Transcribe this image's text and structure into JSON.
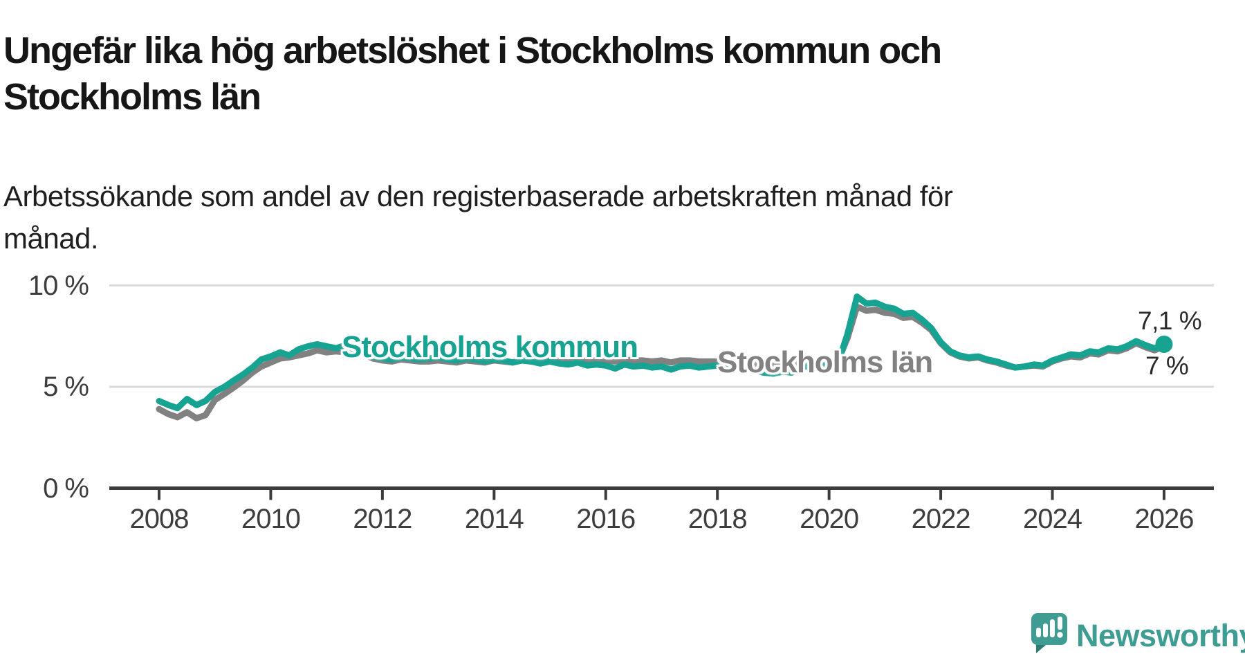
{
  "header": {
    "title": "Ungefär lika hög arbetslöshet i Stockholms kommun och Stockholms län",
    "subtitle": "Arbetssökande som andel av den registerbaserade arbetskraften månad för månad."
  },
  "footer": {
    "brand": "Newsworthy"
  },
  "colors": {
    "kommun_teal": "#17a392",
    "lan_gray": "#818181",
    "grid": "#dadada",
    "axis": "#3c3c3c",
    "tick_text": "#3d3d3d",
    "title_text": "#161616",
    "logo_teal": "#3e9c92",
    "logo_teal_dark": "#2d7b72"
  },
  "chart_data": {
    "type": "line",
    "title": "Ungefär lika hög arbetslöshet i Stockholms kommun och Stockholms län",
    "subtitle": "Arbetssökande som andel av den registerbaserade arbetskraften månad för månad.",
    "xlabel": "",
    "ylabel": "",
    "unit": "%",
    "grid": true,
    "legend_position": "inline-labels",
    "xlim": [
      2007.1,
      2026.9
    ],
    "ylim": [
      0,
      10.5
    ],
    "x_axis": {
      "tick_years": [
        2008,
        2010,
        2012,
        2014,
        2016,
        2018,
        2020,
        2022,
        2024,
        2026
      ]
    },
    "y_axis": {
      "ticks": [
        {
          "value": 10,
          "label": "10 %"
        },
        {
          "value": 5,
          "label": "5 %"
        },
        {
          "value": 0,
          "label": "0 %"
        }
      ],
      "gridline_values": [
        10,
        5
      ]
    },
    "x": [
      2008,
      2008.17,
      2008.33,
      2008.5,
      2008.67,
      2008.83,
      2009,
      2009.17,
      2009.33,
      2009.5,
      2009.67,
      2009.83,
      2010,
      2010.17,
      2010.33,
      2010.5,
      2010.67,
      2010.83,
      2011,
      2011.17,
      2011.33,
      2011.5,
      2011.67,
      2011.83,
      2012,
      2012.17,
      2012.33,
      2012.5,
      2012.67,
      2012.83,
      2013,
      2013.17,
      2013.33,
      2013.5,
      2013.67,
      2013.83,
      2014,
      2014.17,
      2014.33,
      2014.5,
      2014.67,
      2014.83,
      2015,
      2015.17,
      2015.33,
      2015.5,
      2015.67,
      2015.83,
      2016,
      2016.17,
      2016.33,
      2016.5,
      2016.67,
      2016.83,
      2017,
      2017.17,
      2017.33,
      2017.5,
      2017.67,
      2017.83,
      2018,
      2018.17,
      2018.33,
      2018.5,
      2018.67,
      2018.83,
      2019,
      2019.17,
      2019.33,
      2019.5,
      2019.67,
      2019.83,
      2020,
      2020.17,
      2020.33,
      2020.5,
      2020.67,
      2020.83,
      2021,
      2021.17,
      2021.33,
      2021.5,
      2021.67,
      2021.83,
      2022,
      2022.17,
      2022.33,
      2022.5,
      2022.67,
      2022.83,
      2023,
      2023.17,
      2023.33,
      2023.5,
      2023.67,
      2023.83,
      2024,
      2024.17,
      2024.33,
      2024.5,
      2024.67,
      2024.83,
      2025,
      2025.17,
      2025.33,
      2025.5,
      2025.67,
      2025.83,
      2026
    ],
    "series": [
      {
        "name": "Stockholms kommun",
        "color": "#17a392",
        "end_label": "7,1 %",
        "end_value": 7.1,
        "end_dot": true,
        "values": [
          4.3,
          4.1,
          3.95,
          4.4,
          4.1,
          4.3,
          4.75,
          5.0,
          5.3,
          5.6,
          5.95,
          6.35,
          6.5,
          6.7,
          6.55,
          6.85,
          7.0,
          7.1,
          7.0,
          6.9,
          7.05,
          6.95,
          6.8,
          6.5,
          6.4,
          6.35,
          6.45,
          6.4,
          6.35,
          6.4,
          6.45,
          6.35,
          6.3,
          6.4,
          6.35,
          6.25,
          6.35,
          6.3,
          6.2,
          6.3,
          6.25,
          6.15,
          6.25,
          6.15,
          6.1,
          6.2,
          6.05,
          6.1,
          6.05,
          5.9,
          6.1,
          6.0,
          6.05,
          5.95,
          6.0,
          5.85,
          6.0,
          6.05,
          5.95,
          6.0,
          6.05,
          6.0,
          6.05,
          5.95,
          5.8,
          5.7,
          5.65,
          5.75,
          5.7,
          5.95,
          6.05,
          6.1,
          6.15,
          6.25,
          7.6,
          9.45,
          9.1,
          9.15,
          8.95,
          8.85,
          8.6,
          8.65,
          8.3,
          7.9,
          7.2,
          6.75,
          6.55,
          6.45,
          6.5,
          6.35,
          6.25,
          6.1,
          5.95,
          6.0,
          6.1,
          6.05,
          6.3,
          6.45,
          6.6,
          6.55,
          6.75,
          6.7,
          6.9,
          6.85,
          7.0,
          7.25,
          7.05,
          6.9,
          7.1
        ]
      },
      {
        "name": "Stockholms län",
        "color": "#818181",
        "end_label": "7 %",
        "end_value": 7.0,
        "end_dot": false,
        "values": [
          3.9,
          3.65,
          3.5,
          3.75,
          3.45,
          3.6,
          4.35,
          4.65,
          4.95,
          5.3,
          5.7,
          6.0,
          6.2,
          6.4,
          6.45,
          6.55,
          6.65,
          6.8,
          6.7,
          6.75,
          6.7,
          6.75,
          6.6,
          6.4,
          6.3,
          6.25,
          6.35,
          6.3,
          6.25,
          6.25,
          6.3,
          6.25,
          6.2,
          6.3,
          6.25,
          6.2,
          6.3,
          6.25,
          6.2,
          6.3,
          6.25,
          6.2,
          6.3,
          6.25,
          6.2,
          6.3,
          6.25,
          6.3,
          6.3,
          6.25,
          6.35,
          6.3,
          6.3,
          6.25,
          6.3,
          6.2,
          6.3,
          6.3,
          6.25,
          6.25,
          6.25,
          6.2,
          6.2,
          6.15,
          6.1,
          6.05,
          6.05,
          6.1,
          6.05,
          6.15,
          6.2,
          6.2,
          6.25,
          6.35,
          7.4,
          8.95,
          8.75,
          8.8,
          8.65,
          8.6,
          8.4,
          8.45,
          8.15,
          7.8,
          7.15,
          6.7,
          6.5,
          6.4,
          6.45,
          6.3,
          6.2,
          6.05,
          5.95,
          6.0,
          6.05,
          6.0,
          6.25,
          6.4,
          6.5,
          6.45,
          6.65,
          6.6,
          6.8,
          6.75,
          6.9,
          7.15,
          6.95,
          6.8,
          7.0
        ]
      }
    ]
  }
}
